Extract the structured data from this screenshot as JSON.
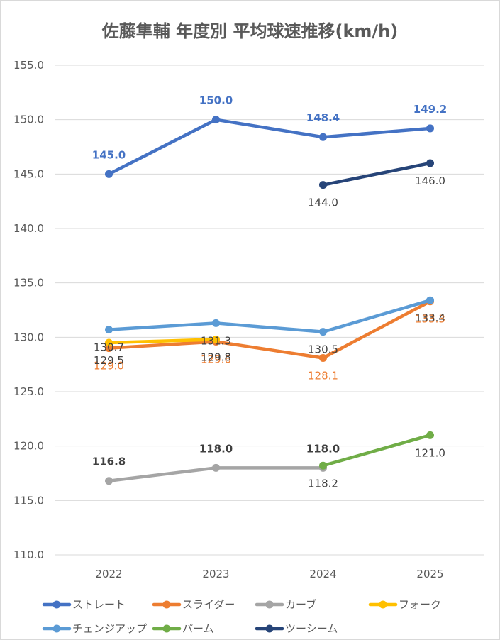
{
  "chart_data": {
    "type": "line",
    "title": "佐藤隼輔 年度別 平均球速推移(km/h)",
    "categories": [
      "2022",
      "2023",
      "2024",
      "2025"
    ],
    "ylim": [
      110,
      155
    ],
    "yticks": [
      "110.0",
      "115.0",
      "120.0",
      "125.0",
      "130.0",
      "135.0",
      "140.0",
      "145.0",
      "150.0",
      "155.0"
    ],
    "grid": true,
    "legend_position": "bottom",
    "series": [
      {
        "name": "ストレート",
        "color": "#4472C4",
        "values": [
          145.0,
          150.0,
          148.4,
          149.2
        ],
        "labels": [
          "145.0",
          "150.0",
          "148.4",
          "149.2"
        ],
        "label_pos": "above",
        "label_bold": true
      },
      {
        "name": "スライダー",
        "color": "#ED7D31",
        "values": [
          129.0,
          129.6,
          128.1,
          133.3
        ],
        "labels": [
          "129.0",
          "129.6",
          "128.1",
          "133.3"
        ],
        "label_pos": "below",
        "label_bold": false
      },
      {
        "name": "カーブ",
        "color": "#A5A5A5",
        "values": [
          116.8,
          118.0,
          118.0,
          null
        ],
        "labels": [
          "116.8",
          "118.0",
          "118.0",
          ""
        ],
        "label_pos": "above",
        "label_bold": true
      },
      {
        "name": "フォーク",
        "color": "#FFC000",
        "values": [
          129.5,
          129.8,
          null,
          null
        ],
        "labels": [
          "129.5",
          "129.8",
          "",
          ""
        ],
        "label_pos": "below",
        "label_bold": false
      },
      {
        "name": "チェンジアップ",
        "color": "#5B9BD5",
        "values": [
          130.7,
          131.3,
          130.5,
          133.4
        ],
        "labels": [
          "130.7",
          "131.3",
          "130.5",
          "133.4"
        ],
        "label_pos": "below",
        "label_bold": false
      },
      {
        "name": "パーム",
        "color": "#70AD47",
        "values": [
          null,
          null,
          118.2,
          121.0
        ],
        "labels": [
          "",
          "",
          "118.2",
          "121.0"
        ],
        "label_pos": "below",
        "label_bold": false
      },
      {
        "name": "ツーシーム",
        "color": "#264478",
        "values": [
          null,
          null,
          144.0,
          146.0
        ],
        "labels": [
          "",
          "",
          "144.0",
          "146.0"
        ],
        "label_pos": "below",
        "label_bold": false
      }
    ]
  }
}
